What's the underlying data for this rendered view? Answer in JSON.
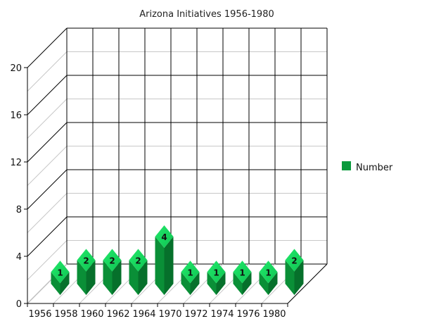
{
  "chart_data": {
    "type": "bar",
    "title": "Arizona Initiatives 1956-1980",
    "xlabel": "",
    "ylabel": "",
    "categories": [
      "1956",
      "1958",
      "1960",
      "1962",
      "1964",
      "1970",
      "1972",
      "1974",
      "1976",
      "1980"
    ],
    "series": [
      {
        "name": "Number",
        "values": [
          1,
          2,
          2,
          2,
          4,
          1,
          1,
          1,
          1,
          2
        ],
        "color": "#0a9a3c"
      }
    ],
    "ylim": [
      0,
      20
    ],
    "yticks": [
      0,
      4,
      8,
      12,
      16,
      20
    ],
    "grid": true,
    "legend_position": "right",
    "data_labels": true
  }
}
